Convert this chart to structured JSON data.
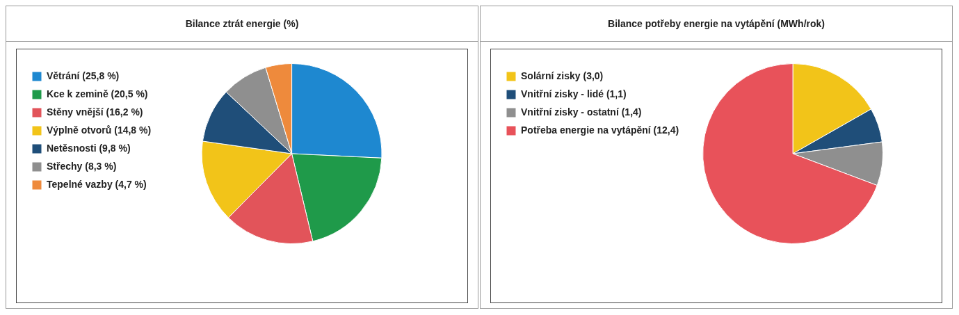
{
  "chart_data": [
    {
      "type": "pie",
      "title": "Bilance ztrát energie (%)",
      "legend": "left",
      "categories": [
        "Větrání (25,8 %)",
        "Kce k zemině (20,5 %)",
        "Stěny vnější (16,2 %)",
        "Výplně otvorů (14,8 %)",
        "Netěsnosti (9,8 %)",
        "Střechy (8,3 %)",
        "Tepelné vazby (4,7 %)"
      ],
      "values": [
        25.8,
        20.5,
        16.2,
        14.8,
        9.8,
        8.3,
        4.7
      ],
      "colors": [
        "#1e88d0",
        "#1f9a4a",
        "#e2545a",
        "#f2c419",
        "#1f4e79",
        "#8f8f8f",
        "#ee8a3c"
      ]
    },
    {
      "type": "pie",
      "title": "Bilance potřeby energie na vytápění (MWh/rok)",
      "legend": "left",
      "categories": [
        "Solární zisky (3,0)",
        "Vnitřní zisky - lidé (1,1)",
        "Vnitřní zisky - ostatní (1,4)",
        "Potřeba energie na vytápění (12,4)"
      ],
      "values": [
        3.0,
        1.1,
        1.4,
        12.4
      ],
      "colors": [
        "#f2c419",
        "#1f4e79",
        "#8f8f8f",
        "#e8525a"
      ]
    }
  ]
}
